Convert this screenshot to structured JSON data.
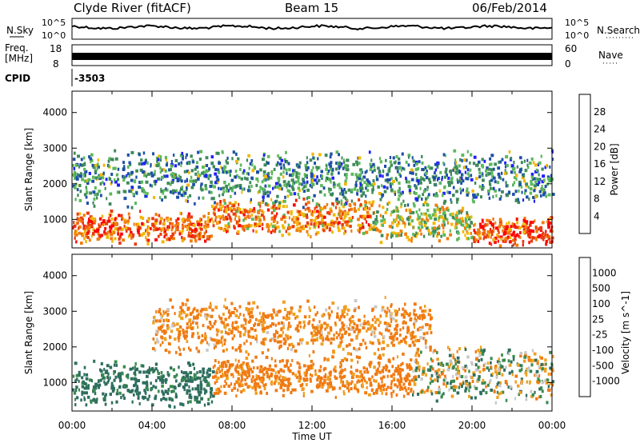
{
  "header": {
    "station": "Clyde River (fitACF)",
    "beam": "Beam 15",
    "date": "06/Feb/2014"
  },
  "top_panels": {
    "nsky_label": "N.Sky",
    "noise_tick_top": "10^5",
    "noise_tick_bottom": "10^0",
    "noise_right_top": "10^5",
    "noise_right_bottom": "10^0",
    "nsearch_label": "N.Search",
    "freq_label": "Freq.",
    "freq_unit": "[MHz]",
    "freq_tick_top": "18",
    "freq_tick_bottom": "8",
    "nave_tick_top": "60",
    "nave_tick_bottom": "0",
    "nave_label": "Nave",
    "cpid_label": "CPID",
    "cpid_value": "-3503"
  },
  "colors": {
    "power_scale": [
      "#1f1fff",
      "#1e4fa8",
      "#3e8a5a",
      "#5cb85c",
      "#f2b705",
      "#f07d10",
      "#e83c10",
      "#ff0000"
    ],
    "velocity_scale": [
      "#ff0000",
      "#e8400a",
      "#f07a12",
      "#f0a020",
      "#c8c8c8",
      "#58b040",
      "#3a8a4e",
      "#2e6e5e",
      "#1a4aa8"
    ]
  },
  "chart_data": [
    {
      "type": "heatmap",
      "title": "Power",
      "xlabel": "Time UT",
      "ylabel": "Slant Range [km]",
      "x_ticks": [
        "00:00",
        "04:00",
        "08:00",
        "12:00",
        "16:00",
        "20:00",
        "00:00"
      ],
      "x_range_hours": [
        0,
        24
      ],
      "ylim": [
        200,
        4600
      ],
      "y_ticks": [
        1000,
        2000,
        3000,
        4000
      ],
      "colorbar": {
        "label": "Power [dB]",
        "ticks": [
          4,
          8,
          12,
          16,
          20,
          24,
          28
        ],
        "range": [
          0,
          32
        ]
      },
      "echo_bands": [
        {
          "t0": 0,
          "t1": 7,
          "r_center": 800,
          "r_width": 700,
          "value": 24
        },
        {
          "t0": 7,
          "t1": 15,
          "r_center": 1100,
          "r_width": 800,
          "value": 22
        },
        {
          "t0": 15,
          "t1": 20,
          "r_center": 1000,
          "r_width": 900,
          "value": 16
        },
        {
          "t0": 20,
          "t1": 24,
          "r_center": 700,
          "r_width": 600,
          "value": 26
        },
        {
          "t0": 0,
          "t1": 24,
          "r_center": 2200,
          "r_width": 1200,
          "value": 10
        }
      ]
    },
    {
      "type": "heatmap",
      "title": "Velocity",
      "xlabel": "Time UT",
      "ylabel": "Slant Range [km]",
      "x_ticks": [
        "00:00",
        "04:00",
        "08:00",
        "12:00",
        "16:00",
        "20:00",
        "00:00"
      ],
      "x_range_hours": [
        0,
        24
      ],
      "ylim": [
        200,
        4600
      ],
      "y_ticks": [
        1000,
        2000,
        3000,
        4000
      ],
      "colorbar": {
        "label": "Velocity [m s^-1]",
        "ticks": [
          "1000",
          "500",
          "100",
          "25",
          "-25",
          "-100",
          "-500",
          "-1000"
        ]
      },
      "echo_bands": [
        {
          "t0": 0,
          "t1": 7,
          "r_center": 1000,
          "r_width": 1000,
          "value": 200
        },
        {
          "t0": 7,
          "t1": 17,
          "r_center": 1200,
          "r_width": 900,
          "value": -200
        },
        {
          "t0": 17,
          "t1": 24,
          "r_center": 1300,
          "r_width": 1200,
          "value": 0
        },
        {
          "t0": 4,
          "t1": 18,
          "r_center": 2600,
          "r_width": 1200,
          "value": -150
        }
      ]
    }
  ]
}
